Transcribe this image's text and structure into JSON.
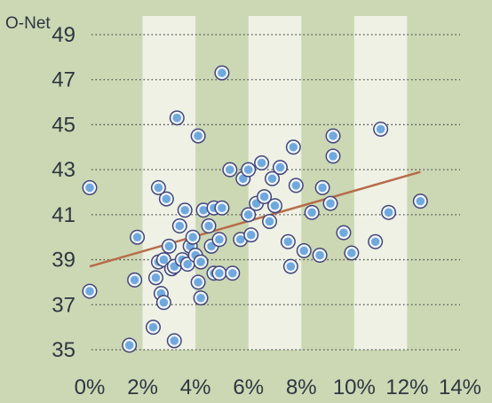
{
  "chart_data": {
    "type": "scatter",
    "title": "",
    "ylabel": "O-Net",
    "xlabel": "",
    "xlim": [
      0,
      14
    ],
    "ylim": [
      35,
      50
    ],
    "x_ticks": [
      0,
      2,
      4,
      6,
      8,
      10,
      12,
      14
    ],
    "x_tick_labels": [
      "0%",
      "2%",
      "4%",
      "6%",
      "8%",
      "10%",
      "12%",
      "14%"
    ],
    "y_ticks": [
      35,
      37,
      39,
      41,
      43,
      45,
      47,
      49
    ],
    "y_tick_labels": [
      "35",
      "37",
      "39",
      "41",
      "43",
      "45",
      "47",
      "49"
    ],
    "grid": "horizontal dotted lines",
    "background_bands": "alternating vertical stripes every 2%",
    "colors": {
      "background": "#ccd8b4",
      "band": "#eef1e4",
      "marker_fill": "#6fa9de",
      "marker_ring": "#f4f6fa",
      "marker_outline": "#41457a",
      "trend_line": "#b86b4a",
      "gridline": "#4a4a4a"
    },
    "trend_line": {
      "x": [
        0,
        12.5
      ],
      "y": [
        38.7,
        42.9
      ]
    },
    "points": [
      [
        0.0,
        37.6
      ],
      [
        0.0,
        42.2
      ],
      [
        1.5,
        35.2
      ],
      [
        1.7,
        38.1
      ],
      [
        1.8,
        40.0
      ],
      [
        2.4,
        36.0
      ],
      [
        2.5,
        38.2
      ],
      [
        2.6,
        38.9
      ],
      [
        2.6,
        42.2
      ],
      [
        2.7,
        37.5
      ],
      [
        2.8,
        39.0
      ],
      [
        2.8,
        37.1
      ],
      [
        2.9,
        41.7
      ],
      [
        3.0,
        39.6
      ],
      [
        3.1,
        38.6
      ],
      [
        3.2,
        35.4
      ],
      [
        3.2,
        38.7
      ],
      [
        3.3,
        45.3
      ],
      [
        3.4,
        40.5
      ],
      [
        3.5,
        39.0
      ],
      [
        3.6,
        41.2
      ],
      [
        3.7,
        38.8
      ],
      [
        3.8,
        39.6
      ],
      [
        3.9,
        40.0
      ],
      [
        4.0,
        39.2
      ],
      [
        4.1,
        38.0
      ],
      [
        4.1,
        44.5
      ],
      [
        4.2,
        37.3
      ],
      [
        4.2,
        38.9
      ],
      [
        4.3,
        41.2
      ],
      [
        4.5,
        40.5
      ],
      [
        4.6,
        39.6
      ],
      [
        4.7,
        41.3
      ],
      [
        4.7,
        38.4
      ],
      [
        4.9,
        39.9
      ],
      [
        4.9,
        38.4
      ],
      [
        5.0,
        41.3
      ],
      [
        5.0,
        47.3
      ],
      [
        5.3,
        43.0
      ],
      [
        5.4,
        38.4
      ],
      [
        5.7,
        39.9
      ],
      [
        5.8,
        42.6
      ],
      [
        6.0,
        41.0
      ],
      [
        6.0,
        43.0
      ],
      [
        6.1,
        40.1
      ],
      [
        6.3,
        41.5
      ],
      [
        6.5,
        43.3
      ],
      [
        6.6,
        41.8
      ],
      [
        6.8,
        40.7
      ],
      [
        6.9,
        42.6
      ],
      [
        7.0,
        41.4
      ],
      [
        7.2,
        43.1
      ],
      [
        7.5,
        39.8
      ],
      [
        7.6,
        38.7
      ],
      [
        7.7,
        44.0
      ],
      [
        7.8,
        42.3
      ],
      [
        8.1,
        39.4
      ],
      [
        8.4,
        41.1
      ],
      [
        8.7,
        39.2
      ],
      [
        8.8,
        42.2
      ],
      [
        9.1,
        41.5
      ],
      [
        9.2,
        43.6
      ],
      [
        9.2,
        44.5
      ],
      [
        9.6,
        40.2
      ],
      [
        9.9,
        39.3
      ],
      [
        10.8,
        39.8
      ],
      [
        11.0,
        44.8
      ],
      [
        11.3,
        41.1
      ],
      [
        12.5,
        41.6
      ]
    ]
  }
}
